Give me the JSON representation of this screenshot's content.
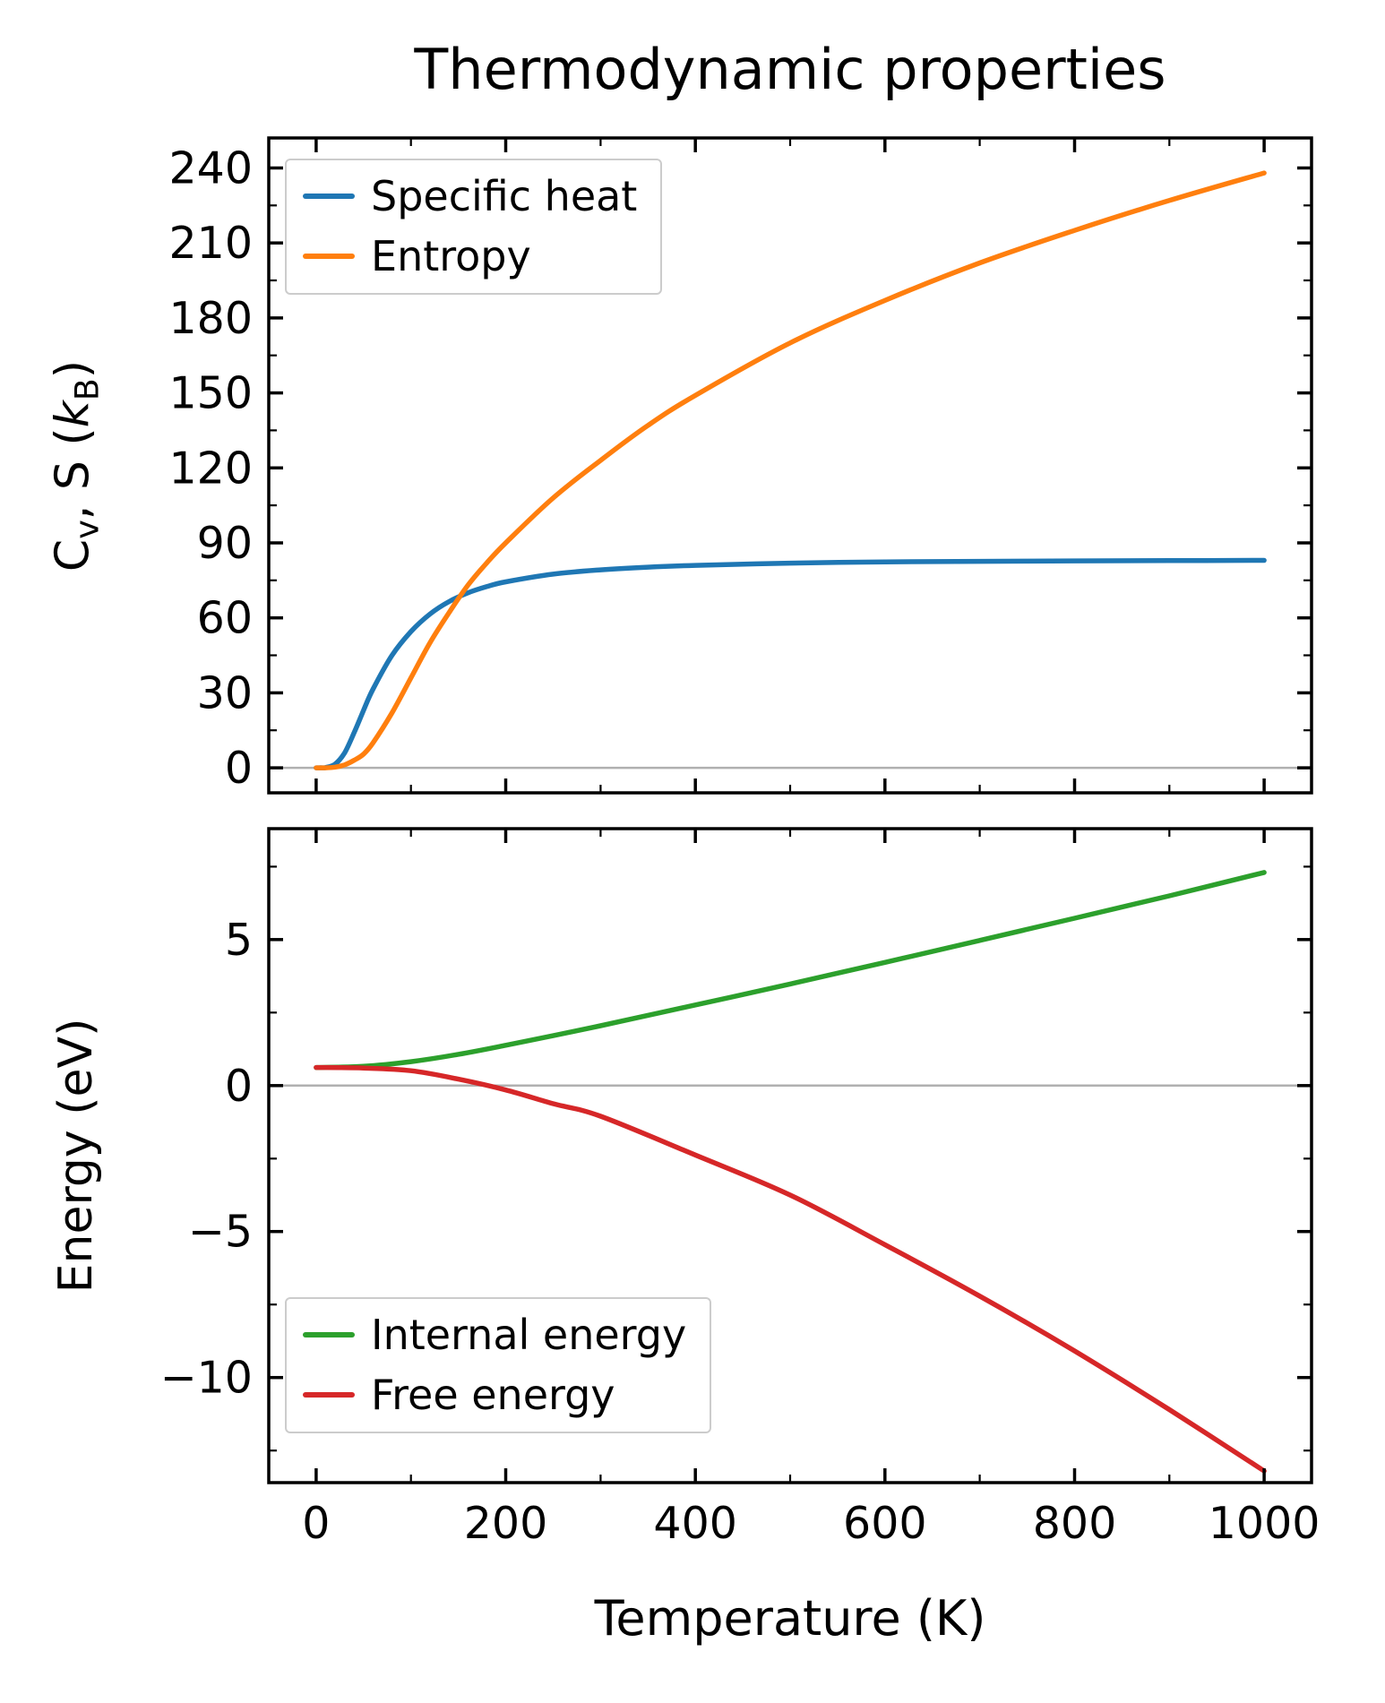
{
  "style": {
    "background": "#ffffff",
    "frame_color": "#000000",
    "zero_line_color": "#b0b0b0",
    "text_color": "#000000"
  },
  "chart_data": [
    {
      "type": "line",
      "title": "Thermodynamic properties",
      "xlabel": "",
      "ylabel": "C_v, S (k_B)",
      "xlim": [
        -50,
        1050
      ],
      "ylim": [
        -10,
        252
      ],
      "xticks": [
        0,
        200,
        400,
        600,
        800,
        1000
      ],
      "yticks": [
        0,
        30,
        60,
        90,
        120,
        150,
        180,
        210,
        240
      ],
      "show_xticklabels": false,
      "grid": false,
      "zero_line": true,
      "legend_position": "upper left",
      "x": [
        0,
        5,
        10,
        20,
        30,
        40,
        50,
        60,
        80,
        100,
        120,
        140,
        160,
        180,
        200,
        250,
        300,
        350,
        400,
        500,
        600,
        700,
        800,
        900,
        1000
      ],
      "series": [
        {
          "name": "Specific heat",
          "color": "#1f77b4",
          "values": [
            0,
            0.02,
            0.1,
            1.5,
            6,
            14,
            23,
            31.5,
            45,
            54.5,
            61.5,
            66.5,
            70,
            72.5,
            74.4,
            77.5,
            79.2,
            80.3,
            81,
            81.9,
            82.4,
            82.6,
            82.8,
            82.9,
            83
          ]
        },
        {
          "name": "Entropy",
          "color": "#ff7f0e",
          "values": [
            0,
            0,
            0,
            0.3,
            1.2,
            3,
            5.5,
            10,
            22,
            36,
            50,
            62,
            73,
            82,
            90,
            108,
            123,
            137,
            149,
            170,
            187,
            202,
            215,
            227,
            238
          ]
        }
      ]
    },
    {
      "type": "line",
      "title": "",
      "xlabel": "Temperature (K)",
      "ylabel": "Energy (eV)",
      "xlim": [
        -50,
        1050
      ],
      "ylim": [
        -13.6,
        8.8
      ],
      "xticks": [
        0,
        200,
        400,
        600,
        800,
        1000
      ],
      "yticks": [
        -10,
        -5,
        0,
        5
      ],
      "show_xticklabels": true,
      "grid": false,
      "zero_line": true,
      "legend_position": "lower left",
      "x": [
        0,
        50,
        100,
        150,
        200,
        250,
        300,
        400,
        500,
        600,
        700,
        800,
        900,
        1000
      ],
      "series": [
        {
          "name": "Internal energy",
          "color": "#2ca02c",
          "values": [
            0.62,
            0.66,
            0.82,
            1.07,
            1.38,
            1.71,
            2.05,
            2.76,
            3.48,
            4.22,
            4.97,
            5.73,
            6.5,
            7.3
          ]
        },
        {
          "name": "Free energy",
          "color": "#d62728",
          "values": [
            0.62,
            0.6,
            0.51,
            0.22,
            -0.15,
            -0.62,
            -1.05,
            -2.38,
            -3.75,
            -5.45,
            -7.21,
            -9.09,
            -11.1,
            -13.2
          ]
        }
      ]
    }
  ]
}
